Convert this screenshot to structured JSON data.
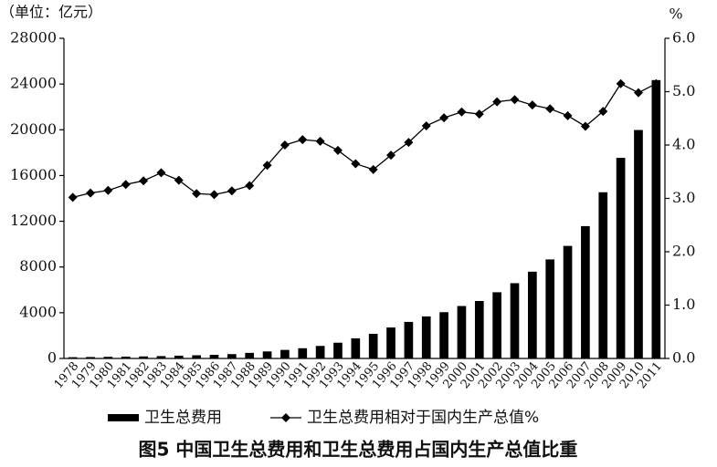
{
  "chart_data": {
    "type": "bar",
    "title": "图5 中国卫生总费用和卫生总费用占国内生产总值比重",
    "y_label": "（单位：亿元）",
    "y2_label": "%",
    "categories": [
      "1978",
      "1979",
      "1980",
      "1981",
      "1982",
      "1983",
      "1984",
      "1985",
      "1986",
      "1987",
      "1988",
      "1989",
      "1990",
      "1991",
      "1992",
      "1993",
      "1994",
      "1995",
      "1996",
      "1997",
      "1998",
      "1999",
      "2000",
      "2001",
      "2002",
      "2003",
      "2004",
      "2005",
      "2006",
      "2007",
      "2008",
      "2009",
      "2010",
      "2011"
    ],
    "series": [
      {
        "name": "卫生总费用",
        "type": "bar",
        "color": "#000000",
        "values": [
          110.2,
          126.2,
          143.2,
          160.1,
          177.5,
          207.4,
          242.1,
          279.0,
          315.9,
          379.6,
          488.0,
          615.5,
          747.4,
          893.5,
          1096.9,
          1377.8,
          1761.2,
          2155.1,
          2709.4,
          3196.7,
          3678.7,
          4047.5,
          4586.6,
          5025.9,
          5790.0,
          6584.1,
          7590.3,
          8659.9,
          9843.3,
          11574.0,
          14535.4,
          17541.9,
          19980.4,
          24345.9
        ]
      },
      {
        "name": "卫生总费用相对于国内生产总值%",
        "type": "line",
        "axis": "y2",
        "color": "#000000",
        "values": [
          3.02,
          3.1,
          3.15,
          3.26,
          3.33,
          3.48,
          3.34,
          3.09,
          3.07,
          3.14,
          3.24,
          3.62,
          4.0,
          4.1,
          4.07,
          3.9,
          3.65,
          3.54,
          3.81,
          4.05,
          4.36,
          4.51,
          4.62,
          4.58,
          4.81,
          4.85,
          4.75,
          4.68,
          4.55,
          4.35,
          4.63,
          5.15,
          4.98,
          5.15
        ]
      }
    ],
    "ylim": [
      0,
      28000
    ],
    "yticks": [
      0,
      4000,
      8000,
      12000,
      16000,
      20000,
      24000,
      28000
    ],
    "y2lim": [
      0,
      6
    ],
    "y2ticks": [
      {
        "value": 0,
        "label": "0.0"
      },
      {
        "value": 1,
        "label": "1.0"
      },
      {
        "value": 2,
        "label": "2.0"
      },
      {
        "value": 3,
        "label": "3.0"
      },
      {
        "value": 4,
        "label": "4.0"
      },
      {
        "value": 5,
        "label": "5.0"
      },
      {
        "value": 6,
        "label": "6.0"
      }
    ],
    "grid": false
  }
}
